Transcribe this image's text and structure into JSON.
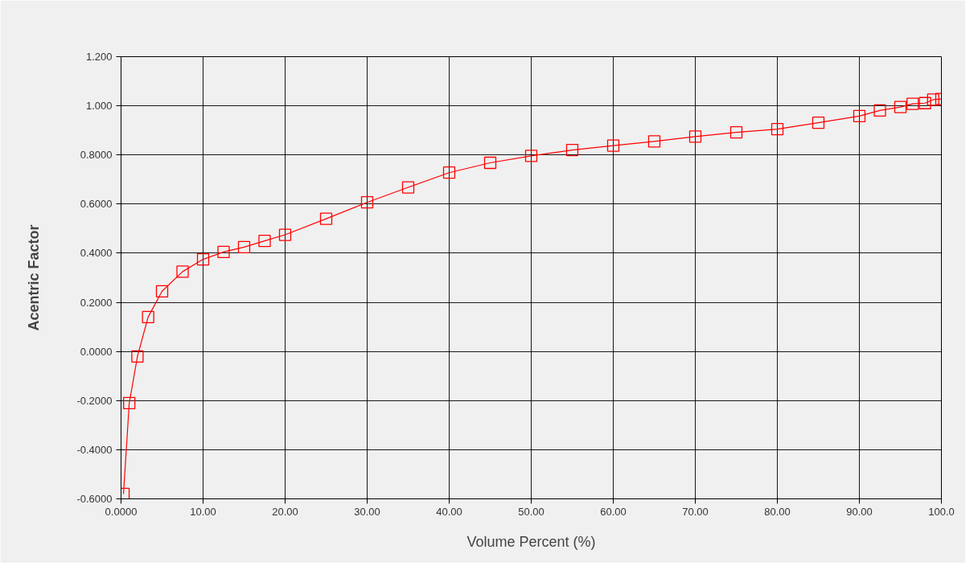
{
  "chart_data": {
    "type": "line",
    "xlabel": "Volume Percent (%)",
    "ylabel": "Acentric Factor",
    "x": [
      0.3,
      1,
      2,
      3.3,
      5,
      7.5,
      10,
      12.5,
      15,
      17.5,
      20,
      25,
      30,
      35,
      40,
      45,
      50,
      55,
      60,
      65,
      70,
      75,
      80,
      85,
      90,
      92.5,
      95,
      96.5,
      98,
      99,
      100
    ],
    "series": [
      {
        "color": "#ff0000",
        "values": [
          -0.58,
          -0.21,
          -0.02,
          0.14,
          0.245,
          0.325,
          0.375,
          0.405,
          0.425,
          0.45,
          0.475,
          0.54,
          0.607,
          0.668,
          0.728,
          0.768,
          0.796,
          0.82,
          0.838,
          0.855,
          0.875,
          0.892,
          0.905,
          0.931,
          0.958,
          0.981,
          0.995,
          1.008,
          1.011,
          1.025,
          1.028
        ]
      }
    ],
    "xlim": [
      0,
      100
    ],
    "ylim": [
      -0.6,
      1.2
    ],
    "xticks": [
      {
        "value": 0,
        "label": "0.0000"
      },
      {
        "value": 10,
        "label": "10.00"
      },
      {
        "value": 20,
        "label": "20.00"
      },
      {
        "value": 30,
        "label": "30.00"
      },
      {
        "value": 40,
        "label": "40.00"
      },
      {
        "value": 50,
        "label": "50.00"
      },
      {
        "value": 60,
        "label": "60.00"
      },
      {
        "value": 70,
        "label": "70.00"
      },
      {
        "value": 80,
        "label": "80.00"
      },
      {
        "value": 90,
        "label": "90.00"
      },
      {
        "value": 100,
        "label": "100.0"
      }
    ],
    "yticks": [
      {
        "value": -0.6,
        "label": "-0.6000"
      },
      {
        "value": -0.4,
        "label": "-0.4000"
      },
      {
        "value": -0.2,
        "label": "-0.2000"
      },
      {
        "value": 0,
        "label": "0.0000"
      },
      {
        "value": 0.2,
        "label": "0.2000"
      },
      {
        "value": 0.4,
        "label": "0.4000"
      },
      {
        "value": 0.6,
        "label": "0.6000"
      },
      {
        "value": 0.8,
        "label": "0.8000"
      },
      {
        "value": 1.0,
        "label": "1.000"
      },
      {
        "value": 1.2,
        "label": "1.200"
      }
    ],
    "grid": true,
    "marker": "square",
    "line_style": "solid"
  }
}
